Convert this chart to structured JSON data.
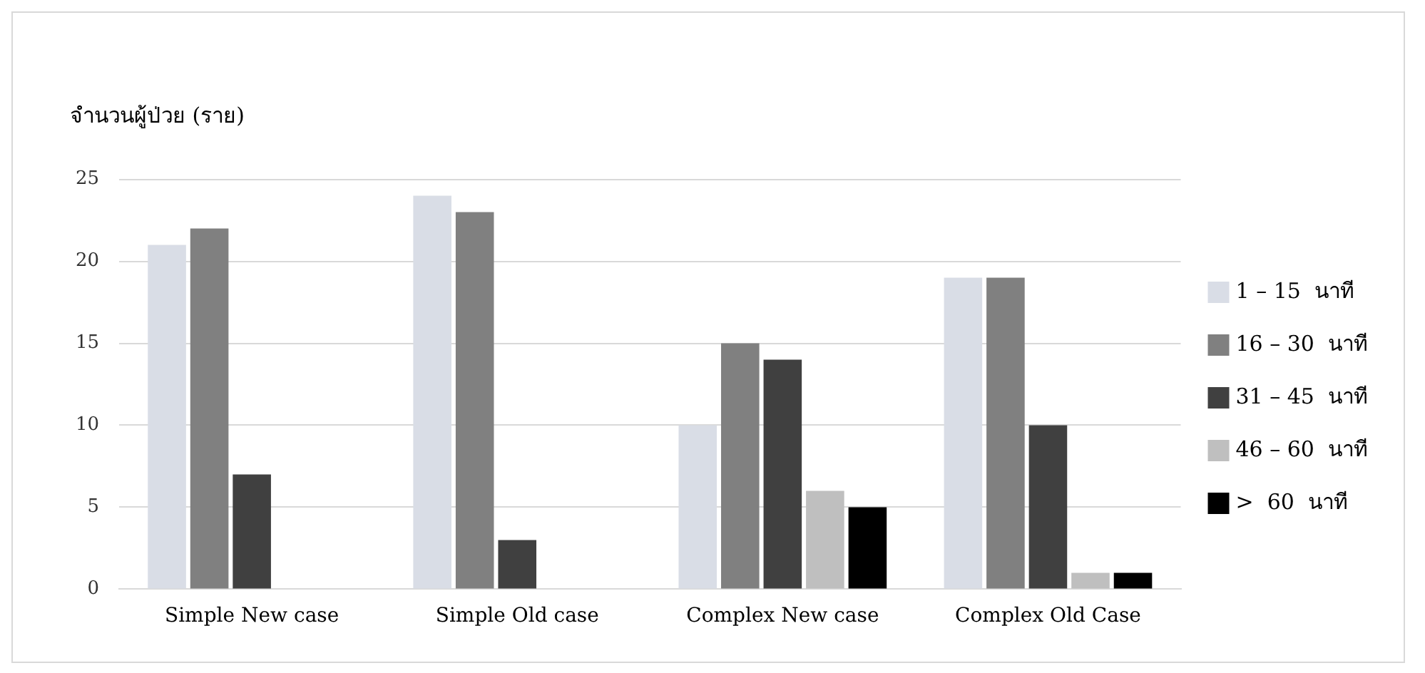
{
  "chart_data": {
    "type": "bar",
    "ylabel": "จำนวนผู้ป่วย (ราย)",
    "categories": [
      "Simple New case",
      "Simple Old case",
      "Complex New case",
      "Complex Old Case"
    ],
    "series": [
      {
        "name": "1 – 15  นาที",
        "color": "#d9dde6",
        "values": [
          21,
          24,
          10,
          19
        ]
      },
      {
        "name": "16 – 30  นาที",
        "color": "#808080",
        "values": [
          22,
          23,
          15,
          19
        ]
      },
      {
        "name": "31 – 45  นาที",
        "color": "#404040",
        "values": [
          7,
          3,
          14,
          10
        ]
      },
      {
        "name": "46 – 60  นาที",
        "color": "#bfbfbf",
        "values": [
          0,
          0,
          6,
          1
        ]
      },
      {
        "name": ">  60  นาที",
        "color": "#000000",
        "values": [
          0,
          0,
          5,
          1
        ]
      }
    ],
    "ylim": [
      0,
      25
    ],
    "yticks": [
      0,
      5,
      10,
      15,
      20,
      25
    ],
    "grid": "y",
    "legend": "right"
  }
}
